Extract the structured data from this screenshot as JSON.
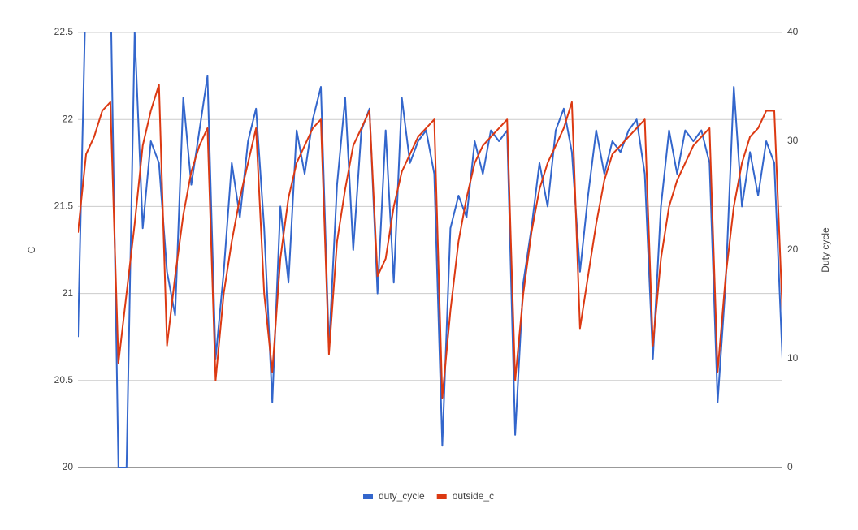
{
  "chart_data": {
    "type": "line",
    "y_label": "C",
    "y2_label": "Duty cycle",
    "ylim": [
      20,
      22.5
    ],
    "yticks": [
      20,
      20.5,
      21,
      21.5,
      22,
      22.5
    ],
    "y2lim": [
      0,
      40
    ],
    "y2ticks": [
      0,
      10,
      20,
      30,
      40
    ],
    "grid": true,
    "legend": "bottom",
    "series": [
      {
        "name": "duty_cycle",
        "color": "#3366cc",
        "axis": "y2",
        "values": [
          12,
          45,
          45,
          45,
          45,
          0,
          0,
          40,
          22,
          30,
          28,
          18,
          14,
          34,
          26,
          31,
          36,
          10,
          18,
          28,
          23,
          30,
          33,
          22,
          6,
          24,
          17,
          31,
          27,
          32,
          35,
          11,
          26,
          34,
          20,
          31,
          33,
          16,
          31,
          17,
          34,
          28,
          30,
          31,
          27,
          2,
          22,
          25,
          23,
          30,
          27,
          31,
          30,
          31,
          3,
          17,
          22,
          28,
          24,
          31,
          33,
          29,
          18,
          25,
          31,
          27,
          30,
          29,
          31,
          32,
          27,
          10,
          24,
          31,
          27,
          31,
          30,
          31,
          28,
          6,
          17,
          35,
          24,
          29,
          25,
          30,
          28,
          10
        ]
      },
      {
        "name": "outside_c",
        "color": "#dc3912",
        "values": [
          21.35,
          21.8,
          21.9,
          22.05,
          22.1,
          20.6,
          21.0,
          21.4,
          21.85,
          22.05,
          22.2,
          20.7,
          21.1,
          21.45,
          21.7,
          21.85,
          21.95,
          20.5,
          21.0,
          21.3,
          21.55,
          21.75,
          21.95,
          21.0,
          20.55,
          21.2,
          21.55,
          21.75,
          21.85,
          21.95,
          22.0,
          20.65,
          21.3,
          21.6,
          21.85,
          21.95,
          22.05,
          21.1,
          21.2,
          21.5,
          21.7,
          21.8,
          21.9,
          21.95,
          22.0,
          20.4,
          20.9,
          21.3,
          21.55,
          21.75,
          21.85,
          21.9,
          21.95,
          22.0,
          20.5,
          21.0,
          21.35,
          21.6,
          21.75,
          21.85,
          21.95,
          22.1,
          20.8,
          21.1,
          21.4,
          21.65,
          21.8,
          21.85,
          21.9,
          21.95,
          22.0,
          20.7,
          21.2,
          21.5,
          21.65,
          21.75,
          21.85,
          21.9,
          21.95,
          20.55,
          21.1,
          21.5,
          21.75,
          21.9,
          21.95,
          22.05,
          22.05,
          20.9
        ]
      }
    ]
  }
}
